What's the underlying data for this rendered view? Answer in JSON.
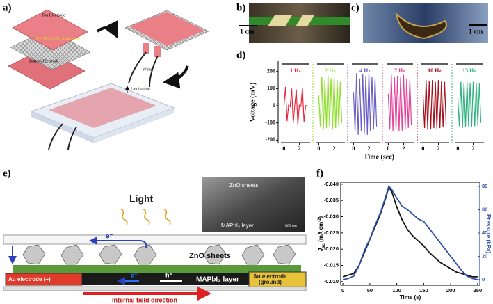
{
  "panel_labels": [
    "a)",
    "b)",
    "c)",
    "d)",
    "e)",
    "f)"
  ],
  "panel_a": {
    "top_electrode": "Top Electrode",
    "composite": "PVDF-MAPbI₃ Composite",
    "bottom_electrode": "Bottom Electrode",
    "wires": "Wires",
    "lamination": "Lamination"
  },
  "panel_b": {
    "scale_bar": "1 cm"
  },
  "panel_c": {
    "scale_bar": "1 cm"
  },
  "panel_e": {
    "light": "Light",
    "sem_top": "ZnO sheets",
    "sem_bottom": "MAPbI₃ layer",
    "sem_scale": "500 nm",
    "electron_top": "e⁻",
    "zno": "ZnO sheets",
    "left_electrode": "Au electrode (+)",
    "electron": "e⁻",
    "hole": "h⁺",
    "layer": "MAPbI₃ layer",
    "right_electrode": [
      "Au electrode",
      "(ground)"
    ],
    "field": "Internal field direction"
  },
  "chart_data": [
    {
      "type": "line",
      "y_label": "Voltage (mV)",
      "x_label": "Time (sec)",
      "ylim": [
        -215,
        260
      ],
      "yticks": [
        -200,
        -100,
        0,
        100,
        200
      ],
      "xlim": [
        -0.4,
        3.4
      ],
      "xticks": [
        0,
        2
      ],
      "x": [
        0,
        0.2,
        0.4,
        0.6,
        0.8,
        1.0,
        1.2,
        1.4,
        1.6,
        1.8,
        2.0,
        2.2,
        2.4,
        2.6,
        2.8,
        3.0
      ],
      "series": [
        {
          "name": "1 Hz",
          "color": "#e8283c",
          "values": [
            0,
            110,
            -90,
            5,
            -5,
            100,
            -100,
            0,
            95,
            -110,
            3,
            -4,
            105,
            -95,
            0,
            2
          ]
        },
        {
          "name": "2 Hz",
          "color": "#8ee02a",
          "values": [
            60,
            -120,
            170,
            -140,
            150,
            -130,
            180,
            -120,
            160,
            -140,
            170,
            -130,
            150,
            -120,
            140,
            -100
          ]
        },
        {
          "name": "4 Hz",
          "color": "#6a5fc0",
          "values": [
            80,
            -150,
            190,
            -170,
            160,
            -150,
            185,
            -160,
            175,
            -170,
            190,
            -150,
            170,
            -140,
            160,
            -120
          ]
        },
        {
          "name": "7 Hz",
          "color": "#e0459a",
          "values": [
            70,
            -140,
            180,
            -150,
            170,
            -140,
            175,
            -150,
            165,
            -145,
            180,
            -140,
            160,
            -130,
            150,
            -110
          ]
        },
        {
          "name": "10 Hz",
          "color": "#a3121c",
          "values": [
            60,
            -130,
            150,
            -140,
            145,
            -135,
            150,
            -130,
            140,
            -135,
            150,
            -130,
            145,
            -125,
            140,
            -110
          ]
        },
        {
          "name": "15 Hz",
          "color": "#2fb37e",
          "values": [
            50,
            -120,
            140,
            -130,
            135,
            -125,
            140,
            -120,
            130,
            -125,
            140,
            -120,
            135,
            -115,
            130,
            -100
          ]
        }
      ]
    },
    {
      "type": "line",
      "x_label": "Time (s)",
      "y_label": {
        "symbol": "J",
        "sub": "sc",
        "unit": " (mA cm",
        "sup": "-2",
        "close": ")"
      },
      "y2_label": "Pressure (kPa)",
      "xlim": [
        -4,
        254
      ],
      "xticks": [
        0,
        50,
        100,
        150,
        200,
        250
      ],
      "ylim": [
        -0.0089,
        -0.0406
      ],
      "yticks": [
        {
          "value": -0.04,
          "label": "-0.040"
        },
        -0.035,
        {
          "value": -0.03,
          "label": "-0.030"
        },
        -0.025,
        {
          "value": -0.02,
          "label": "-0.020"
        },
        -0.015,
        {
          "value": -0.01,
          "label": "-0.010"
        }
      ],
      "y2lim": [
        -4.8,
        83.6
      ],
      "y2ticks": [
        0,
        20,
        40,
        60,
        80
      ],
      "x": [
        0,
        10,
        20,
        30,
        40,
        50,
        60,
        70,
        80,
        85,
        90,
        100,
        110,
        120,
        130,
        140,
        150,
        160,
        170,
        180,
        190,
        200,
        210,
        220,
        230,
        240,
        250
      ],
      "series": [
        {
          "color": "#111111",
          "values": [
            -0.0115,
            -0.012,
            -0.0125,
            -0.015,
            -0.019,
            -0.023,
            -0.027,
            -0.031,
            -0.036,
            -0.039,
            -0.038,
            -0.033,
            -0.029,
            -0.026,
            -0.024,
            -0.0225,
            -0.021,
            -0.019,
            -0.0175,
            -0.016,
            -0.015,
            -0.014,
            -0.013,
            -0.0125,
            -0.012,
            -0.0115,
            -0.0115
          ]
        },
        {
          "color": "#2c4fa8",
          "axis": "y2",
          "values": [
            0,
            1,
            3,
            12,
            25,
            35,
            47,
            58,
            72,
            80,
            78,
            70,
            63,
            60,
            56,
            52,
            50,
            44,
            38,
            32,
            26,
            20,
            14,
            8,
            3,
            1,
            0
          ]
        }
      ]
    }
  ]
}
